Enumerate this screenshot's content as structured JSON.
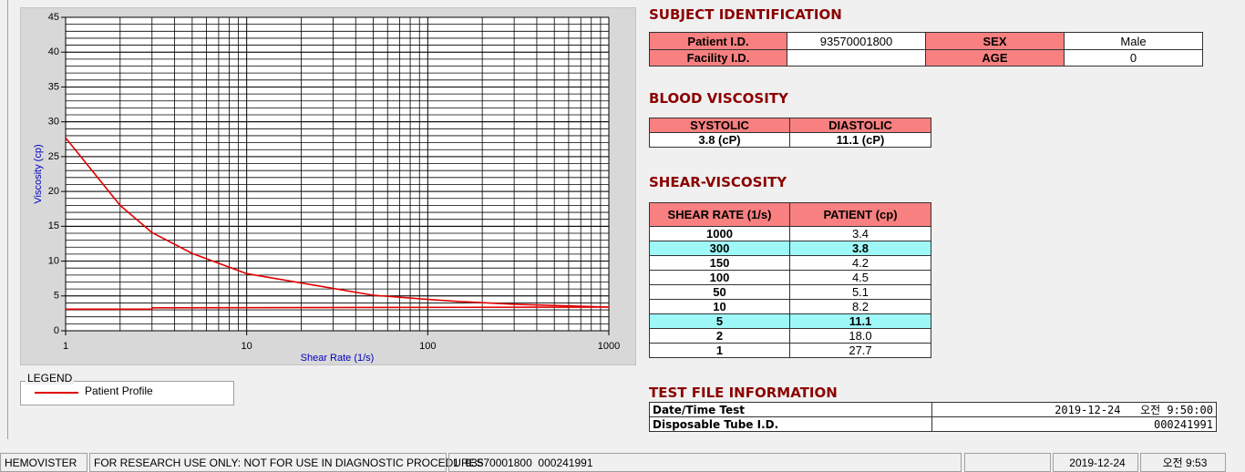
{
  "chart_data": {
    "type": "line",
    "xlabel": "Shear Rate (1/s)",
    "ylabel": "Viscosity (cp)",
    "xscale": "log",
    "xlim": [
      1,
      1000
    ],
    "xticks": [
      1,
      10,
      100,
      1000
    ],
    "ylim": [
      0,
      45
    ],
    "yticks": [
      0,
      5,
      10,
      15,
      20,
      25,
      30,
      35,
      40,
      45
    ],
    "grid": true,
    "legend_title": "LEGEND",
    "series": [
      {
        "name": "Patient Profile",
        "color": "#e00000",
        "x": [
          1,
          2,
          3,
          5,
          10,
          50,
          100,
          150,
          300,
          1000
        ],
        "values": [
          27.7,
          18.0,
          14.1,
          11.1,
          8.2,
          5.1,
          4.5,
          4.2,
          3.8,
          3.4
        ]
      },
      {
        "color": "#e00000",
        "x": [
          1,
          3,
          3,
          1000
        ],
        "values": [
          3.1,
          3.1,
          3.3,
          3.4
        ]
      }
    ]
  },
  "subject": {
    "title": "SUBJECT IDENTIFICATION",
    "patient_id_label": "Patient I.D.",
    "patient_id": "93570001800",
    "sex_label": "SEX",
    "sex": "Male",
    "facility_label": "Facility I.D.",
    "age_label": "AGE",
    "age": "0"
  },
  "blood": {
    "title": "BLOOD VISCOSITY",
    "headers": [
      "SYSTOLIC",
      "DIASTOLIC"
    ],
    "values": [
      "3.8 (cP)",
      "11.1 (cP)"
    ]
  },
  "shear": {
    "title": "SHEAR-VISCOSITY",
    "headers": [
      "SHEAR RATE (1/s)",
      "PATIENT (cp)"
    ],
    "rows": [
      {
        "rate": "1000",
        "patient": "3.4"
      },
      {
        "rate": "300",
        "patient": "3.8",
        "highlight": true
      },
      {
        "rate": "150",
        "patient": "4.2"
      },
      {
        "rate": "100",
        "patient": "4.5"
      },
      {
        "rate": "50",
        "patient": "5.1"
      },
      {
        "rate": "10",
        "patient": "8.2"
      },
      {
        "rate": "5",
        "patient": "11.1",
        "highlight": true
      },
      {
        "rate": "2",
        "patient": "18.0"
      },
      {
        "rate": "1",
        "patient": "27.7"
      }
    ]
  },
  "test_file": {
    "title": "TEST FILE INFORMATION",
    "rows": [
      [
        "Date/Time Test",
        "2019-12-24   오전 9:50:00"
      ],
      [
        "Disposable Tube I.D.",
        "000241991"
      ]
    ]
  },
  "status_bar": [
    "HEMOVISTER",
    "FOR RESEARCH USE ONLY: NOT FOR USE IN DIAGNOSTIC PROCEDURES",
    "1  93570001800  000241991",
    "2019-12-24",
    "오전 9:53"
  ]
}
